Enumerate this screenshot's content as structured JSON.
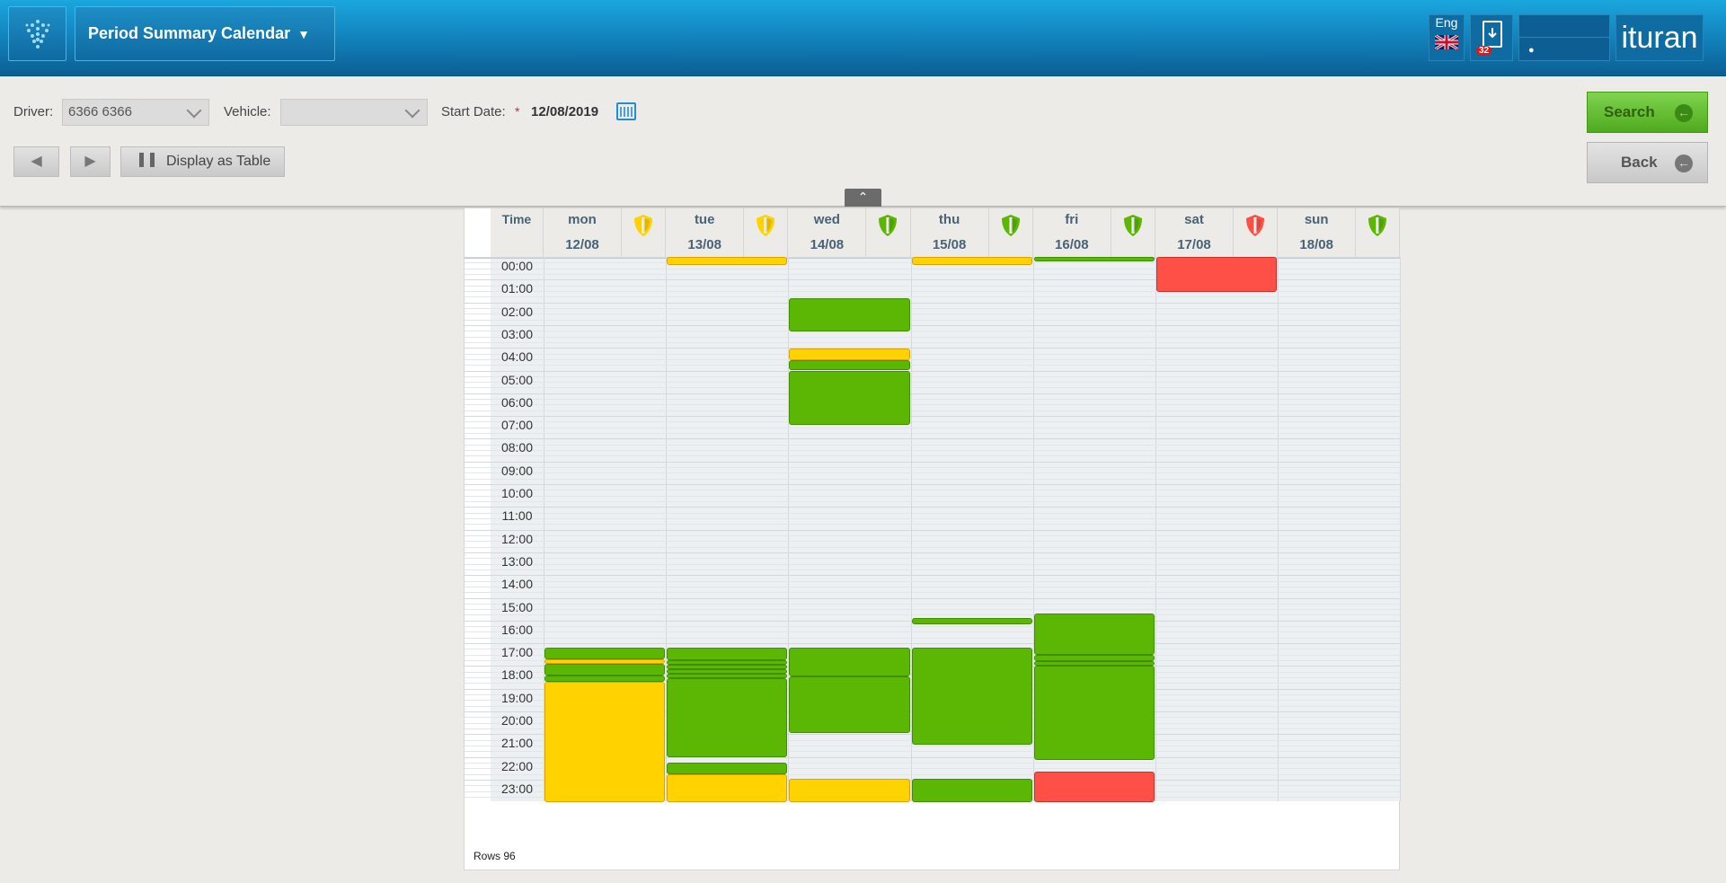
{
  "header": {
    "title": "Period Summary Calendar",
    "lang": "Eng",
    "badge_count": "32",
    "brand": "ituran"
  },
  "filters": {
    "driver_label": "Driver:",
    "driver_value": "6366 6366",
    "vehicle_label": "Vehicle:",
    "vehicle_value": "",
    "start_date_label": "Start Date:",
    "required_mark": "*",
    "start_date_value": "12/08/2019",
    "display_table_label": "Display as Table",
    "search_label": "Search",
    "back_label": "Back"
  },
  "calendar": {
    "time_header": "Time",
    "days": [
      {
        "name": "mon",
        "date": "12/08",
        "status": "yellow"
      },
      {
        "name": "tue",
        "date": "13/08",
        "status": "yellow"
      },
      {
        "name": "wed",
        "date": "14/08",
        "status": "green"
      },
      {
        "name": "thu",
        "date": "15/08",
        "status": "green"
      },
      {
        "name": "fri",
        "date": "16/08",
        "status": "green"
      },
      {
        "name": "sat",
        "date": "17/08",
        "status": "red"
      },
      {
        "name": "sun",
        "date": "18/08",
        "status": "green"
      }
    ],
    "hours": [
      "00:00",
      "01:00",
      "02:00",
      "03:00",
      "04:00",
      "05:00",
      "06:00",
      "07:00",
      "08:00",
      "09:00",
      "10:00",
      "11:00",
      "12:00",
      "13:00",
      "14:00",
      "15:00",
      "16:00",
      "17:00",
      "18:00",
      "19:00",
      "20:00",
      "21:00",
      "22:00",
      "23:00"
    ],
    "rows_label": "Rows 96",
    "colors": {
      "green": "#5cb705",
      "yellow": "#ffd200",
      "red": "#ff5047"
    },
    "events": [
      {
        "day": 0,
        "start": 17.2,
        "end": 17.7,
        "status": "green"
      },
      {
        "day": 0,
        "start": 17.7,
        "end": 17.9,
        "status": "yellow"
      },
      {
        "day": 0,
        "start": 17.9,
        "end": 18.4,
        "status": "green"
      },
      {
        "day": 0,
        "start": 18.4,
        "end": 18.7,
        "status": "green"
      },
      {
        "day": 0,
        "start": 18.7,
        "end": 24.0,
        "status": "yellow"
      },
      {
        "day": 1,
        "start": 0.0,
        "end": 0.35,
        "status": "yellow"
      },
      {
        "day": 1,
        "start": 17.2,
        "end": 17.75,
        "status": "green"
      },
      {
        "day": 1,
        "start": 17.75,
        "end": 17.95,
        "status": "green"
      },
      {
        "day": 1,
        "start": 17.95,
        "end": 18.15,
        "status": "green"
      },
      {
        "day": 1,
        "start": 18.15,
        "end": 18.35,
        "status": "green"
      },
      {
        "day": 1,
        "start": 18.35,
        "end": 18.55,
        "status": "green"
      },
      {
        "day": 1,
        "start": 18.55,
        "end": 22.0,
        "status": "green"
      },
      {
        "day": 1,
        "start": 22.25,
        "end": 22.75,
        "status": "green"
      },
      {
        "day": 1,
        "start": 22.75,
        "end": 24.0,
        "status": "yellow"
      },
      {
        "day": 2,
        "start": 1.8,
        "end": 3.3,
        "status": "green"
      },
      {
        "day": 2,
        "start": 4.05,
        "end": 4.55,
        "status": "yellow"
      },
      {
        "day": 2,
        "start": 4.55,
        "end": 5.0,
        "status": "green"
      },
      {
        "day": 2,
        "start": 5.0,
        "end": 7.4,
        "status": "green"
      },
      {
        "day": 2,
        "start": 17.2,
        "end": 18.45,
        "status": "green"
      },
      {
        "day": 2,
        "start": 18.45,
        "end": 20.95,
        "status": "green"
      },
      {
        "day": 2,
        "start": 22.95,
        "end": 24.0,
        "status": "yellow"
      },
      {
        "day": 3,
        "start": 0.0,
        "end": 0.35,
        "status": "yellow"
      },
      {
        "day": 3,
        "start": 15.9,
        "end": 16.15,
        "status": "green"
      },
      {
        "day": 3,
        "start": 17.2,
        "end": 21.45,
        "status": "green"
      },
      {
        "day": 3,
        "start": 22.95,
        "end": 24.0,
        "status": "green"
      },
      {
        "day": 4,
        "start": 0.0,
        "end": 0.2,
        "status": "green"
      },
      {
        "day": 4,
        "start": 15.7,
        "end": 17.5,
        "status": "green"
      },
      {
        "day": 4,
        "start": 17.5,
        "end": 17.8,
        "status": "green"
      },
      {
        "day": 4,
        "start": 17.8,
        "end": 18.0,
        "status": "green"
      },
      {
        "day": 4,
        "start": 18.0,
        "end": 22.15,
        "status": "green"
      },
      {
        "day": 4,
        "start": 22.65,
        "end": 24.0,
        "status": "red"
      },
      {
        "day": 5,
        "start": 0.0,
        "end": 1.55,
        "status": "red"
      }
    ]
  }
}
